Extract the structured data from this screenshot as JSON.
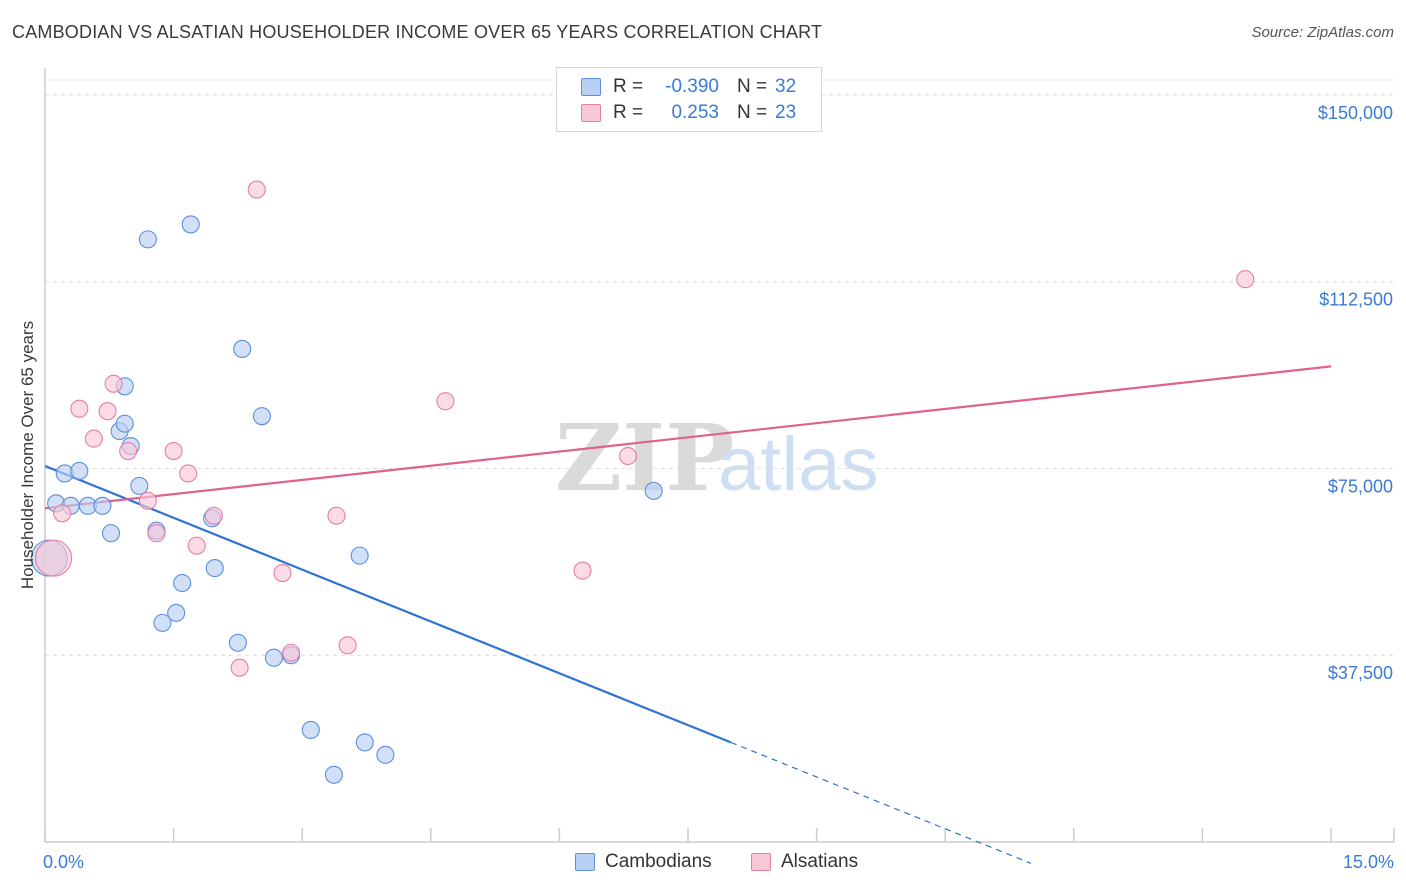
{
  "header": {
    "title": "CAMBODIAN VS ALSATIAN HOUSEHOLDER INCOME OVER 65 YEARS CORRELATION CHART",
    "source": "Source: ZipAtlas.com"
  },
  "watermark": {
    "zip": "ZIP",
    "atlas": "atlas"
  },
  "legend_top": [
    {
      "r_label": "R =",
      "r_value": "-0.390",
      "n_label": "N =",
      "n_value": "32"
    },
    {
      "r_label": "R =",
      "r_value": "0.253",
      "n_label": "N =",
      "n_value": "23"
    }
  ],
  "legend_bottom": [
    {
      "label": "Cambodians"
    },
    {
      "label": "Alsatians"
    }
  ],
  "chart_data": {
    "type": "scatter",
    "ylabel": "Householder Income Over 65 years",
    "x_tick_labels": [
      "0.0%",
      "15.0%"
    ],
    "y_tick_labels": [
      "$150,000",
      "$112,500",
      "$75,000",
      "$37,500"
    ],
    "xlim": [
      0,
      15
    ],
    "ylim": [
      0,
      153000
    ],
    "y_ticks": [
      150000,
      112500,
      75000,
      37500
    ],
    "x_minor_ticks": [
      0,
      1.5,
      3,
      4.5,
      6,
      7.5,
      9,
      10.5,
      12,
      13.5,
      15
    ],
    "grid": true,
    "colors": {
      "cambodians": "#5b8fdd",
      "cambodians_fill": "#b8d0f3",
      "alsatians": "#e87ea3",
      "alsatians_fill": "#f8c8d8",
      "axis_text": "#3a7bd5"
    },
    "series": [
      {
        "name": "Cambodians",
        "points": [
          [
            0.13,
            68000
          ],
          [
            0.23,
            74000
          ],
          [
            0.4,
            74500
          ],
          [
            0.3,
            67500
          ],
          [
            0.5,
            67500
          ],
          [
            0.67,
            67500
          ],
          [
            0.77,
            62000
          ],
          [
            0.87,
            82500
          ],
          [
            0.93,
            91500
          ],
          [
            0.93,
            84000
          ],
          [
            1.0,
            79500
          ],
          [
            1.1,
            71500
          ],
          [
            1.2,
            121000
          ],
          [
            1.3,
            62500
          ],
          [
            1.37,
            44000
          ],
          [
            1.53,
            46000
          ],
          [
            1.6,
            52000
          ],
          [
            1.7,
            124000
          ],
          [
            1.95,
            65000
          ],
          [
            1.98,
            55000
          ],
          [
            2.25,
            40000
          ],
          [
            2.3,
            99000
          ],
          [
            2.53,
            85500
          ],
          [
            2.67,
            37000
          ],
          [
            2.87,
            37500
          ],
          [
            3.1,
            22500
          ],
          [
            3.37,
            13500
          ],
          [
            3.67,
            57500
          ],
          [
            3.73,
            20000
          ],
          [
            3.97,
            17500
          ],
          [
            7.1,
            70500
          ],
          [
            0.05,
            57000
          ]
        ]
      },
      {
        "name": "Alsatians",
        "points": [
          [
            0.2,
            66000
          ],
          [
            0.4,
            87000
          ],
          [
            0.57,
            81000
          ],
          [
            0.73,
            86500
          ],
          [
            0.8,
            92000
          ],
          [
            0.97,
            78500
          ],
          [
            1.2,
            68500
          ],
          [
            1.3,
            62000
          ],
          [
            1.5,
            78500
          ],
          [
            1.67,
            74000
          ],
          [
            1.77,
            59500
          ],
          [
            1.97,
            65500
          ],
          [
            2.27,
            35000
          ],
          [
            2.47,
            131000
          ],
          [
            2.77,
            54000
          ],
          [
            2.87,
            38000
          ],
          [
            3.4,
            65500
          ],
          [
            3.53,
            39500
          ],
          [
            4.67,
            88500
          ],
          [
            6.27,
            54500
          ],
          [
            6.8,
            77500
          ],
          [
            14.0,
            113000
          ],
          [
            0.1,
            57000
          ]
        ]
      }
    ],
    "trend_lines": [
      {
        "name": "Cambodians",
        "x1": 0.0,
        "y1": 75500,
        "x2": 8.0,
        "y2": 20000,
        "dash_to_x": 11.5
      },
      {
        "name": "Alsatians",
        "x1": 0.0,
        "y1": 67000,
        "x2": 15.0,
        "y2": 95500
      }
    ]
  }
}
